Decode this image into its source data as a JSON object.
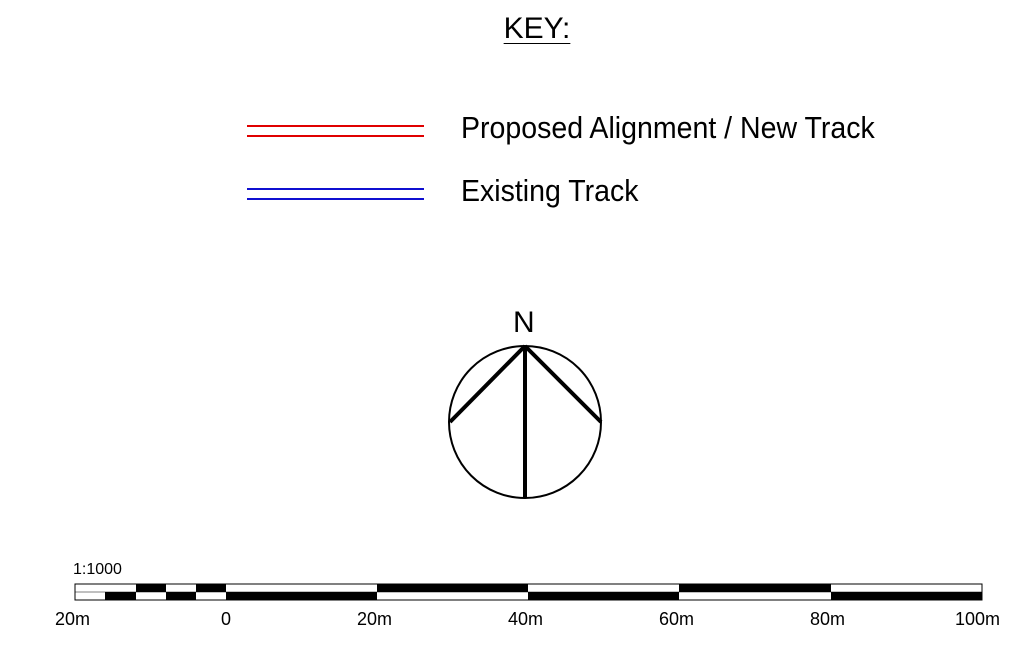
{
  "key": {
    "title": "KEY:",
    "items": [
      {
        "label": "Proposed Alignment / New Track",
        "color": "#e00000"
      },
      {
        "label": "Existing Track",
        "color": "#1010d0"
      }
    ]
  },
  "north_arrow": {
    "label": "N",
    "icon": "north-arrow-icon"
  },
  "scale_bar": {
    "ratio": "1:1000",
    "labels": [
      "20m",
      "0",
      "20m",
      "40m",
      "60m",
      "80m",
      "100m"
    ]
  }
}
